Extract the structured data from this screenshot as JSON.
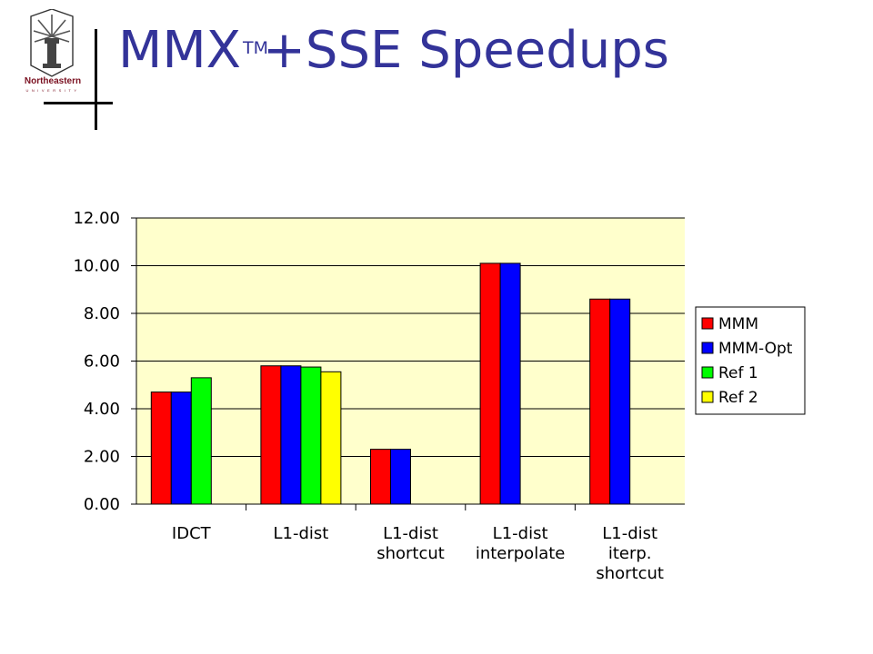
{
  "slide": {
    "title_main": "MMX",
    "title_sup": "TM",
    "title_rest": "+SSE Speedups",
    "logo_name": "Northeastern",
    "logo_sub": "UNIVERSITY"
  },
  "colors": {
    "title": "#333399",
    "plot_bg": "#ffffcc",
    "series": [
      "#ff0000",
      "#0000ff",
      "#00ff00",
      "#ffff00"
    ]
  },
  "chart_data": {
    "type": "bar",
    "categories": [
      [
        "IDCT"
      ],
      [
        "L1-dist"
      ],
      [
        "L1-dist",
        "shortcut"
      ],
      [
        "L1-dist",
        "interpolate"
      ],
      [
        "L1-dist",
        "iterp.",
        "shortcut"
      ]
    ],
    "series": [
      {
        "name": "MMM",
        "values": [
          4.7,
          5.8,
          2.3,
          10.1,
          8.6
        ]
      },
      {
        "name": "MMM-Opt",
        "values": [
          4.7,
          5.8,
          2.3,
          10.1,
          8.6
        ]
      },
      {
        "name": "Ref 1",
        "values": [
          5.3,
          5.75,
          null,
          null,
          null
        ]
      },
      {
        "name": "Ref 2",
        "values": [
          null,
          5.55,
          null,
          null,
          null
        ]
      }
    ],
    "ylim": [
      0,
      12
    ],
    "yticks": [
      0,
      2,
      4,
      6,
      8,
      10,
      12
    ],
    "ytick_labels": [
      "0.00",
      "2.00",
      "4.00",
      "6.00",
      "8.00",
      "10.00",
      "12.00"
    ],
    "grid": true,
    "legend": "right",
    "title": "",
    "xlabel": "",
    "ylabel": ""
  }
}
